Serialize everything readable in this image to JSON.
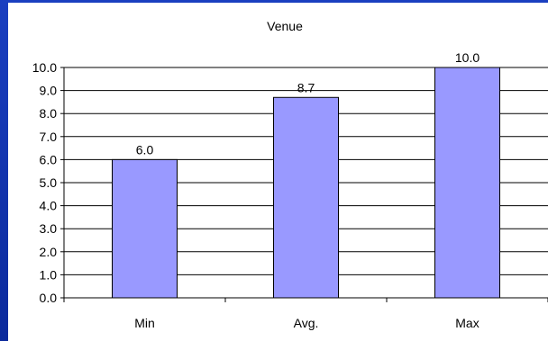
{
  "chart_data": {
    "type": "bar",
    "title": "Venue",
    "categories": [
      "Min",
      "Avg.",
      "Max"
    ],
    "values": [
      6.0,
      8.7,
      10.0
    ],
    "value_labels": [
      "6.0",
      "8.7",
      "10.0"
    ],
    "yticks": [
      "0.0",
      "1.0",
      "2.0",
      "3.0",
      "4.0",
      "5.0",
      "6.0",
      "7.0",
      "8.0",
      "9.0",
      "10.0"
    ],
    "ylim": [
      0,
      10
    ],
    "grid": true,
    "legend": "none",
    "xlabel": "",
    "ylabel": ""
  },
  "colors": {
    "bar_fill": "#9999ff",
    "bar_stroke": "#000000",
    "frame": "#0b2a9c",
    "background": "#ffffff"
  }
}
